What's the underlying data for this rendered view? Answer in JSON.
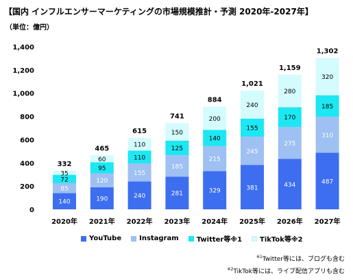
{
  "title": "【国内 インフルエンサーマーケティングの市場規模推計・予測 2020年-2027年】",
  "unit": "（単位：億円）",
  "notes": {
    "n1_mark": "※1",
    "n1_text": "Twitter等には、ブログも含む",
    "n2_mark": "※2",
    "n2_text": "TikTok等には、ライブ配信アプリも含む"
  },
  "chart_data": {
    "type": "bar",
    "stacked": true,
    "categories": [
      "2020年",
      "2021年",
      "2022年",
      "2023年",
      "2024年",
      "2025年",
      "2026年",
      "2027年"
    ],
    "series": [
      {
        "name": "YouTube",
        "color": "#3d6ef0",
        "values": [
          140,
          190,
          240,
          281,
          329,
          381,
          434,
          487
        ]
      },
      {
        "name": "Instagram",
        "color": "#9ec0f2",
        "values": [
          85,
          120,
          155,
          185,
          215,
          245,
          275,
          310
        ]
      },
      {
        "name": "Twitter等※1",
        "color": "#1de7f2",
        "values": [
          72,
          95,
          110,
          125,
          140,
          155,
          170,
          185
        ]
      },
      {
        "name": "TikTok等※2",
        "color": "#d4fbfd",
        "values": [
          35,
          60,
          110,
          150,
          200,
          240,
          280,
          320
        ]
      }
    ],
    "totals": [
      332,
      465,
      615,
      741,
      884,
      "1,021",
      "1,159",
      "1,302"
    ],
    "yticks": [
      "0",
      "200",
      "400",
      "600",
      "800",
      "1,000",
      "1,200",
      "1,400"
    ],
    "ylim": [
      0,
      1400
    ],
    "grid": false,
    "legend": "bottom"
  }
}
